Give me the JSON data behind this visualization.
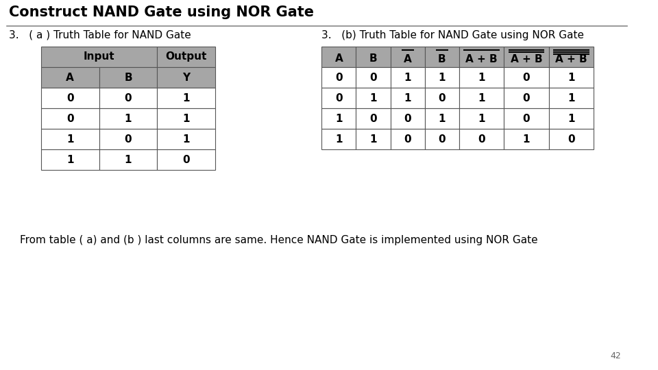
{
  "title": "Construct NAND Gate using NOR Gate",
  "subtitle_a": "3.   ( a ) Truth Table for NAND Gate",
  "subtitle_b": "3.   (b) Truth Table for NAND Gate using NOR Gate",
  "footer": "From table ( a) and (b ) last columns are same. Hence NAND Gate is implemented using NOR Gate",
  "page_number": "42",
  "bg_color": "#ffffff",
  "table_header_color": "#a6a6a6",
  "table_row_color": "#ffffff",
  "table_border_color": "#555555",
  "title_color": "#000000",
  "title_fontsize": 15,
  "subtitle_fontsize": 11,
  "table_fontsize": 11,
  "footer_fontsize": 11,
  "table_a_data": [
    [
      "0",
      "0",
      "1"
    ],
    [
      "0",
      "1",
      "1"
    ],
    [
      "1",
      "0",
      "1"
    ],
    [
      "1",
      "1",
      "0"
    ]
  ],
  "table_b_data": [
    [
      "0",
      "0",
      "1",
      "1",
      "1",
      "0",
      "1"
    ],
    [
      "0",
      "1",
      "1",
      "0",
      "1",
      "0",
      "1"
    ],
    [
      "1",
      "0",
      "0",
      "1",
      "1",
      "0",
      "1"
    ],
    [
      "1",
      "1",
      "0",
      "0",
      "0",
      "1",
      "0"
    ]
  ]
}
